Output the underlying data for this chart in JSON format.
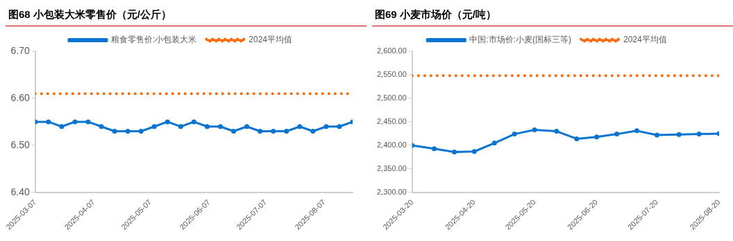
{
  "chart_data": [
    {
      "type": "line",
      "title": "图68 小包装大米零售价（元/公斤）",
      "x": [
        "2025-03-07",
        "2025-03-14",
        "2025-03-21",
        "2025-03-28",
        "2025-04-04",
        "2025-04-11",
        "2025-04-18",
        "2025-04-25",
        "2025-05-02",
        "2025-05-09",
        "2025-05-16",
        "2025-05-23",
        "2025-05-30",
        "2025-06-06",
        "2025-06-13",
        "2025-06-20",
        "2025-06-27",
        "2025-07-04",
        "2025-07-11",
        "2025-07-18",
        "2025-07-25",
        "2025-08-01",
        "2025-08-08",
        "2025-08-15",
        "2025-08-22"
      ],
      "series": [
        {
          "name": "粮食零售价:小包装大米",
          "color": "#0a74d2",
          "values": [
            6.55,
            6.55,
            6.54,
            6.55,
            6.55,
            6.54,
            6.53,
            6.53,
            6.53,
            6.54,
            6.55,
            6.54,
            6.55,
            6.54,
            6.54,
            6.53,
            6.54,
            6.53,
            6.53,
            6.53,
            6.54,
            6.53,
            6.54,
            6.54,
            6.55
          ]
        }
      ],
      "ref_lines": [
        {
          "axis": "y",
          "value": 6.61,
          "label": "2024平均值",
          "color": "#ff6600",
          "line_style": "dotted"
        }
      ],
      "xlim": [
        "2025-03-07",
        "2025-08-22"
      ],
      "xticks": [
        "2025-03-07",
        "2025-04-07",
        "2025-05-07",
        "2025-06-07",
        "2025-07-07",
        "2025-08-07"
      ],
      "ylim": [
        6.4,
        6.7
      ],
      "yticks": [
        {
          "value": 6.4,
          "label": "6.40"
        },
        {
          "value": 6.5,
          "label": "6.50"
        },
        {
          "value": 6.6,
          "label": "6.60"
        },
        {
          "value": 6.7,
          "label": "6.70"
        }
      ],
      "grid": false,
      "legend": "top",
      "marker": "circle",
      "line_style": "solid"
    },
    {
      "type": "line",
      "title": "图69 小麦市场价（元/吨）",
      "x": [
        "2025-03-20",
        "2025-03-31",
        "2025-04-10",
        "2025-04-20",
        "2025-04-30",
        "2025-05-10",
        "2025-05-20",
        "2025-05-31",
        "2025-06-10",
        "2025-06-20",
        "2025-06-30",
        "2025-07-10",
        "2025-07-20",
        "2025-07-31",
        "2025-08-10",
        "2025-08-20"
      ],
      "series": [
        {
          "name": "中国:市场价:小麦(国标三等)",
          "color": "#0a74d2",
          "values": [
            2400,
            2393,
            2386,
            2387,
            2405,
            2424,
            2433,
            2430,
            2414,
            2418,
            2424,
            2431,
            2422,
            2423,
            2424,
            2425
          ]
        }
      ],
      "ref_lines": [
        {
          "axis": "y",
          "value": 2548,
          "label": "2024平均值",
          "color": "#ff6600",
          "line_style": "dotted"
        }
      ],
      "xlim": [
        "2025-03-20",
        "2025-08-20"
      ],
      "xticks": [
        "2025-03-20",
        "2025-04-20",
        "2025-05-20",
        "2025-06-20",
        "2025-07-20",
        "2025-08-20"
      ],
      "ylim": [
        2300,
        2600
      ],
      "yticks": [
        {
          "value": 2300,
          "label": "2,300.00"
        },
        {
          "value": 2350,
          "label": "2,350.00"
        },
        {
          "value": 2400,
          "label": "2,400.00"
        },
        {
          "value": 2450,
          "label": "2,450.00"
        },
        {
          "value": 2500,
          "label": "2,500.00"
        },
        {
          "value": 2550,
          "label": "2,550.00"
        },
        {
          "value": 2600,
          "label": "2,600.00"
        }
      ],
      "grid": false,
      "legend": "top",
      "marker": "circle",
      "line_style": "solid"
    }
  ]
}
